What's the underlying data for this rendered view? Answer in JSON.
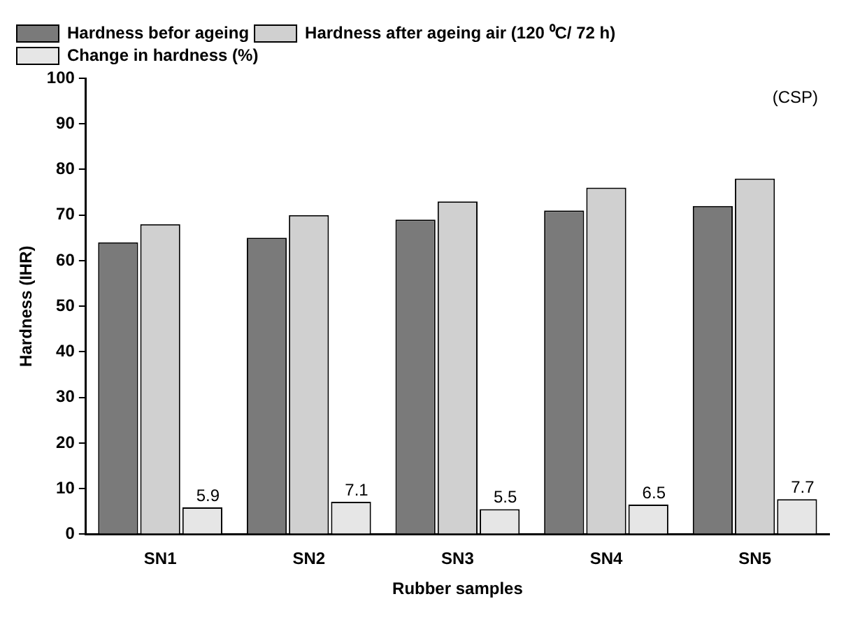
{
  "chart_data": {
    "type": "bar",
    "xlabel": "Rubber samples",
    "ylabel": "Hardness (IHR)",
    "categories": [
      "SN1",
      "SN2",
      "SN3",
      "SN4",
      "SN5"
    ],
    "series": [
      {
        "name": "Hardness befor ageing",
        "color": "#7a7a7a",
        "values": [
          64,
          65,
          69,
          71,
          72
        ]
      },
      {
        "name": "Hardness after ageing air (120 ⁰C/ 72 h)",
        "color": "#d0d0d0",
        "values": [
          68,
          70,
          73,
          76,
          78
        ]
      },
      {
        "name": "Change in hardness (%)",
        "color": "#e6e6e6",
        "values": [
          5.9,
          7.1,
          5.5,
          6.5,
          7.7
        ],
        "value_labels": [
          "5.9",
          "7.1",
          "5.5",
          "6.5",
          "7.7"
        ]
      }
    ],
    "ylim": [
      0,
      100
    ],
    "yticks": [
      0,
      10,
      20,
      30,
      40,
      50,
      60,
      70,
      80,
      90,
      100
    ],
    "grid": false,
    "legend": "top left",
    "annotations": [
      "(CSP)"
    ]
  }
}
